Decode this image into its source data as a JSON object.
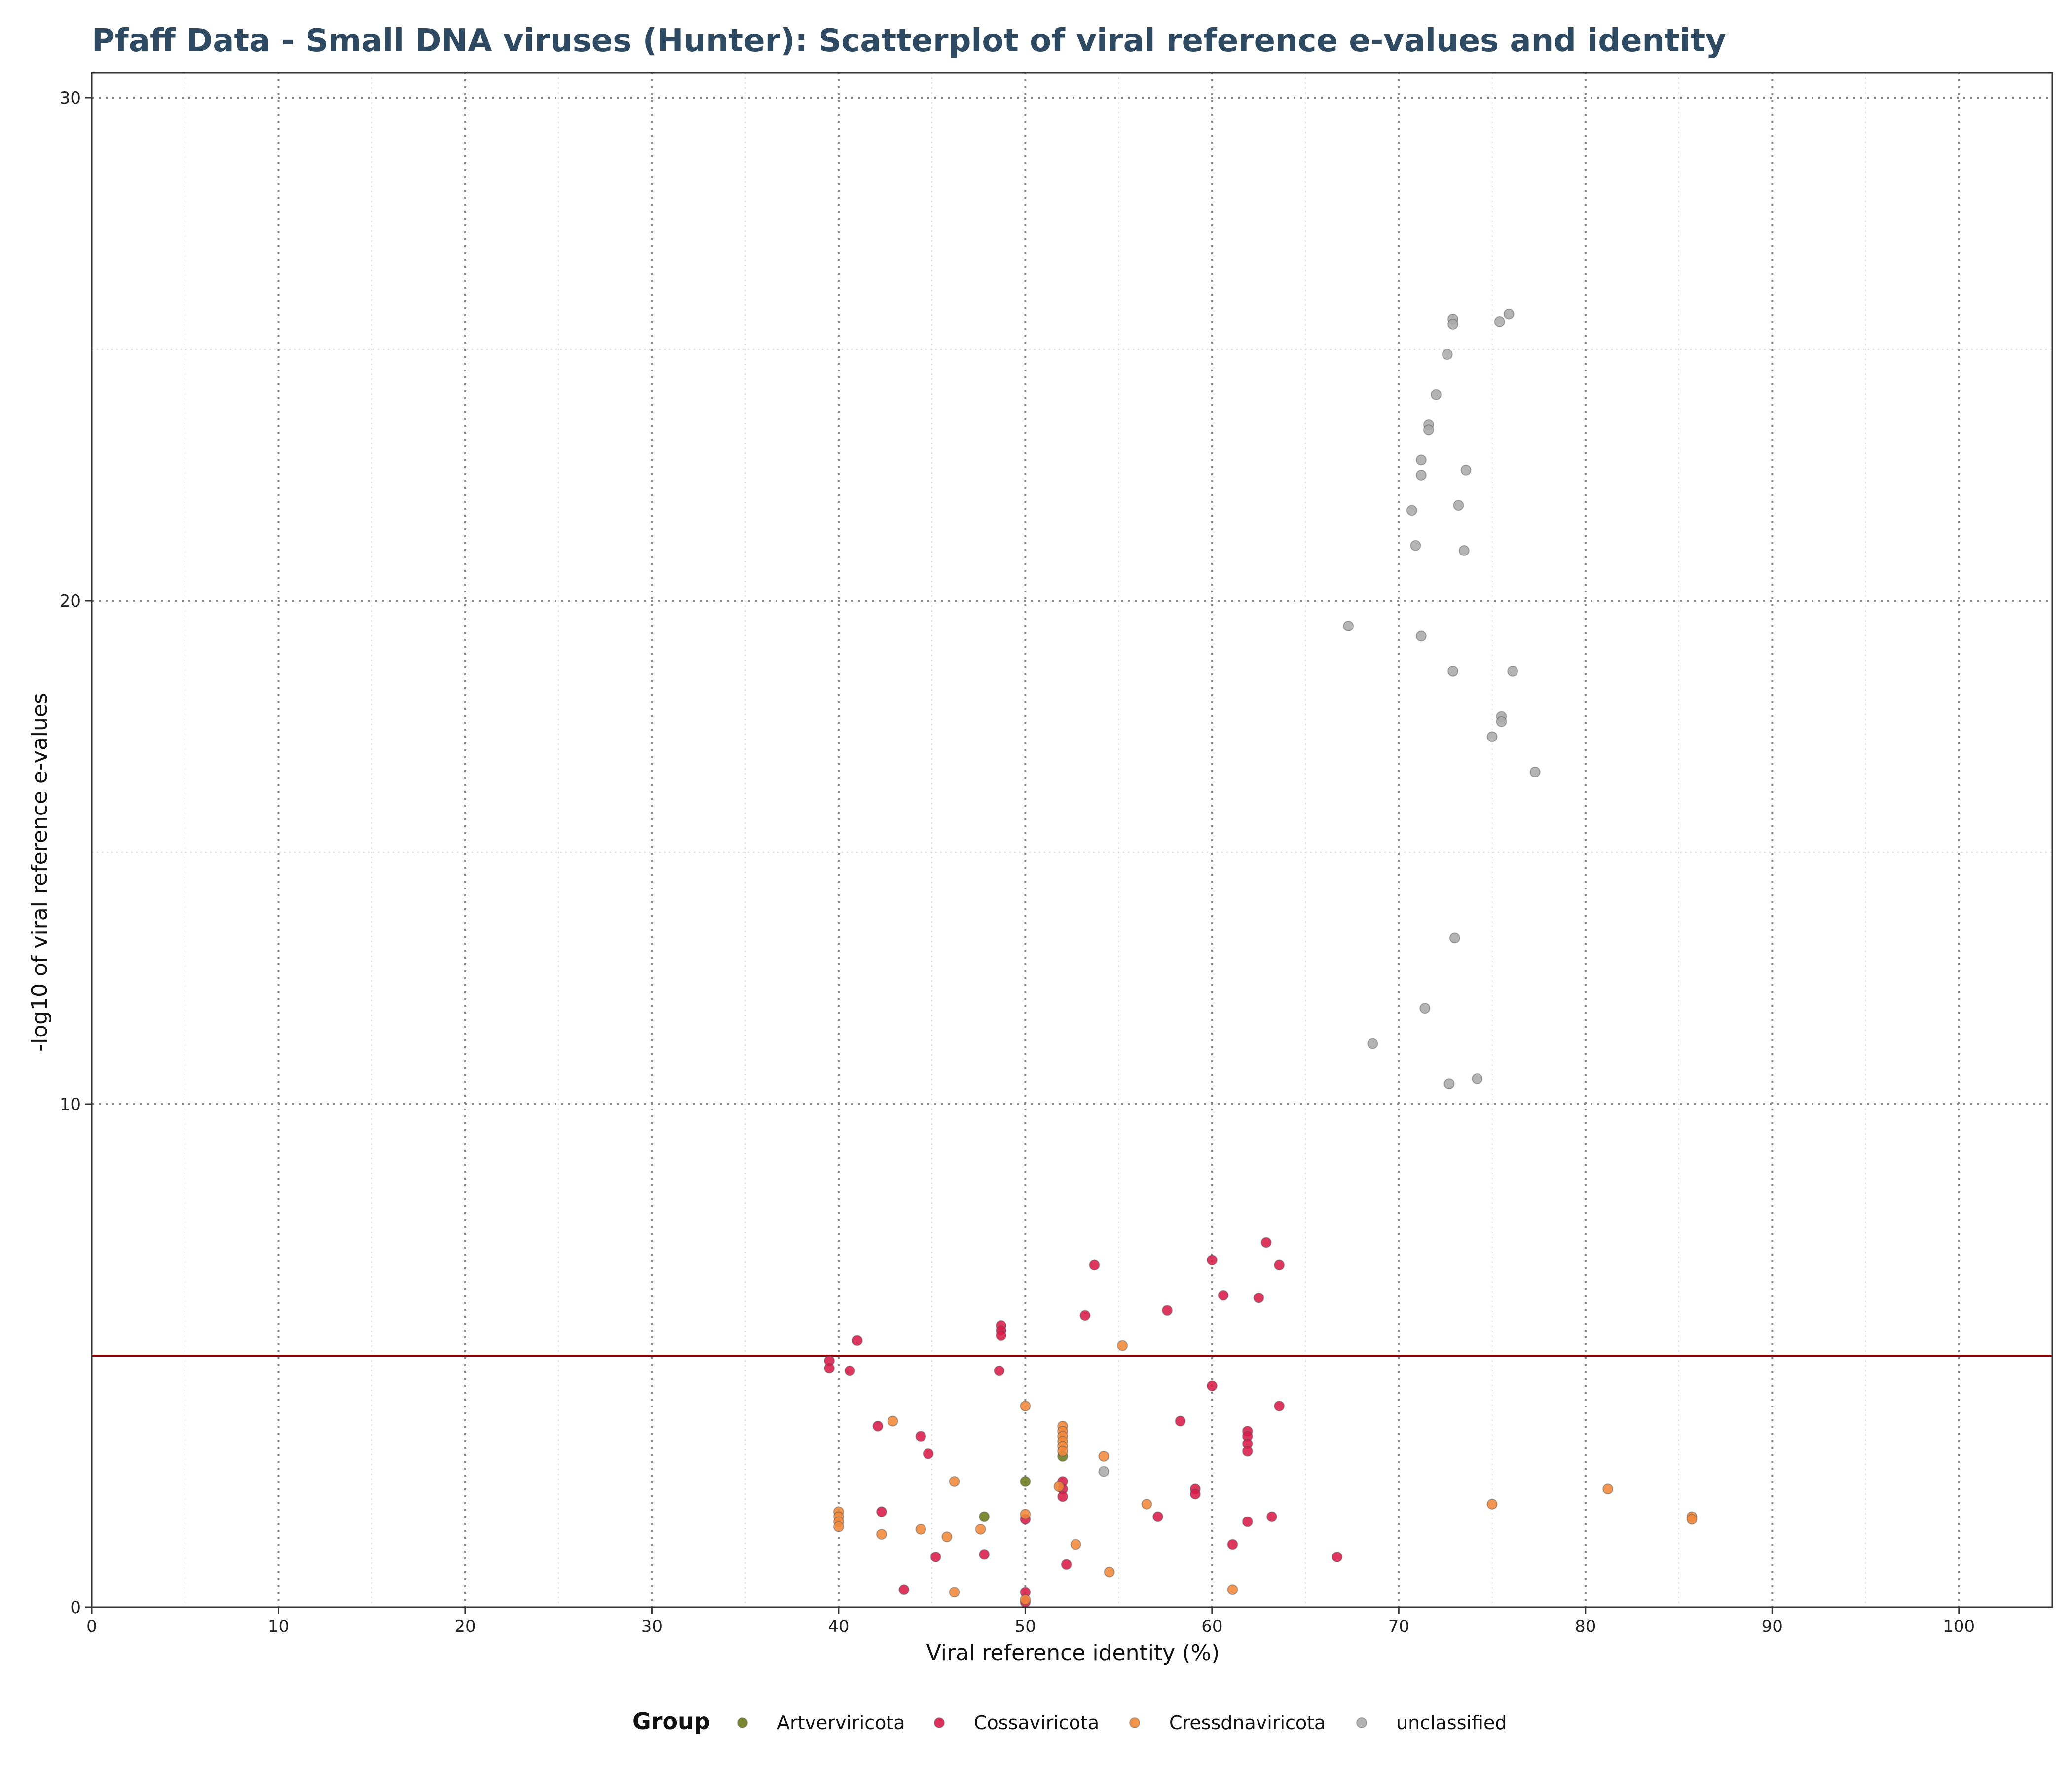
{
  "chart_data": {
    "type": "scatter",
    "title": "Pfaff Data - Small DNA viruses (Hunter): Scatterplot of viral reference e-values and identity",
    "xlabel": "Viral reference identity (%)",
    "ylabel": "-log10 of viral reference e-values",
    "xlim": [
      0,
      105
    ],
    "ylim": [
      0,
      30.5
    ],
    "x_ticks": [
      0,
      10,
      20,
      30,
      40,
      50,
      60,
      70,
      80,
      90,
      100
    ],
    "y_ticks": [
      0,
      10,
      20,
      30
    ],
    "grid": true,
    "threshold_line": {
      "y": 5,
      "color": "#8b0000"
    },
    "legend": {
      "title": "Group",
      "position": "bottom"
    },
    "series": [
      {
        "name": "Artverviricota",
        "color": "#6b7a1a",
        "points": [
          [
            47.8,
            1.8
          ],
          [
            50.0,
            2.5
          ],
          [
            52.0,
            3.0
          ]
        ]
      },
      {
        "name": "Cossaviricota",
        "color": "#d81b4a",
        "points": [
          [
            39.5,
            4.9
          ],
          [
            39.5,
            4.75
          ],
          [
            40.6,
            4.7
          ],
          [
            41.0,
            5.3
          ],
          [
            42.1,
            3.6
          ],
          [
            42.3,
            1.9
          ],
          [
            43.5,
            0.35
          ],
          [
            44.4,
            3.4
          ],
          [
            44.8,
            3.05
          ],
          [
            45.2,
            1.0
          ],
          [
            47.8,
            1.05
          ],
          [
            48.6,
            4.7
          ],
          [
            48.7,
            5.6
          ],
          [
            48.7,
            5.5
          ],
          [
            48.7,
            5.4
          ],
          [
            50.0,
            1.75
          ],
          [
            50.0,
            0.3
          ],
          [
            50.0,
            0.1
          ],
          [
            52.0,
            2.5
          ],
          [
            52.0,
            2.35
          ],
          [
            52.0,
            2.2
          ],
          [
            52.2,
            0.85
          ],
          [
            53.2,
            5.8
          ],
          [
            53.7,
            6.8
          ],
          [
            57.1,
            1.8
          ],
          [
            57.6,
            5.9
          ],
          [
            58.3,
            3.7
          ],
          [
            59.1,
            2.35
          ],
          [
            59.1,
            2.25
          ],
          [
            60.0,
            6.9
          ],
          [
            60.0,
            4.4
          ],
          [
            60.6,
            6.2
          ],
          [
            61.1,
            1.25
          ],
          [
            61.9,
            3.5
          ],
          [
            61.9,
            3.4
          ],
          [
            61.9,
            3.25
          ],
          [
            61.9,
            3.1
          ],
          [
            61.9,
            1.7
          ],
          [
            62.5,
            6.15
          ],
          [
            62.9,
            7.25
          ],
          [
            63.2,
            1.8
          ],
          [
            63.6,
            6.8
          ],
          [
            63.6,
            4.0
          ],
          [
            66.7,
            1.0
          ]
        ]
      },
      {
        "name": "Cressdnaviricota",
        "color": "#f0883a",
        "points": [
          [
            40.0,
            1.9
          ],
          [
            40.0,
            1.8
          ],
          [
            40.0,
            1.7
          ],
          [
            40.0,
            1.6
          ],
          [
            42.3,
            1.45
          ],
          [
            42.9,
            3.7
          ],
          [
            44.4,
            1.55
          ],
          [
            45.8,
            1.4
          ],
          [
            46.2,
            2.5
          ],
          [
            46.2,
            0.3
          ],
          [
            47.6,
            1.55
          ],
          [
            50.0,
            4.0
          ],
          [
            50.0,
            1.85
          ],
          [
            50.0,
            0.15
          ],
          [
            51.8,
            2.4
          ],
          [
            52.0,
            3.6
          ],
          [
            52.0,
            3.5
          ],
          [
            52.0,
            3.4
          ],
          [
            52.0,
            3.3
          ],
          [
            52.0,
            3.2
          ],
          [
            52.0,
            3.1
          ],
          [
            52.7,
            1.25
          ],
          [
            54.2,
            3.0
          ],
          [
            54.5,
            0.7
          ],
          [
            55.2,
            5.2
          ],
          [
            56.5,
            2.05
          ],
          [
            61.1,
            0.35
          ],
          [
            75.0,
            2.05
          ],
          [
            81.2,
            2.35
          ],
          [
            85.7,
            1.8
          ],
          [
            85.7,
            1.75
          ]
        ]
      },
      {
        "name": "unclassified",
        "color": "#aaaaaa",
        "points": [
          [
            54.2,
            2.7
          ],
          [
            67.3,
            19.5
          ],
          [
            68.6,
            11.2
          ],
          [
            70.7,
            21.8
          ],
          [
            70.9,
            21.1
          ],
          [
            71.2,
            22.8
          ],
          [
            71.2,
            22.5
          ],
          [
            71.2,
            19.3
          ],
          [
            71.4,
            11.9
          ],
          [
            71.6,
            23.5
          ],
          [
            71.6,
            23.4
          ],
          [
            72.0,
            24.1
          ],
          [
            72.6,
            24.9
          ],
          [
            72.7,
            10.4
          ],
          [
            72.9,
            25.6
          ],
          [
            72.9,
            25.5
          ],
          [
            72.9,
            18.6
          ],
          [
            73.0,
            13.3
          ],
          [
            73.2,
            21.9
          ],
          [
            73.5,
            21.0
          ],
          [
            73.6,
            22.6
          ],
          [
            74.2,
            10.5
          ],
          [
            75.0,
            17.3
          ],
          [
            75.4,
            25.55
          ],
          [
            75.5,
            17.7
          ],
          [
            75.5,
            17.6
          ],
          [
            75.9,
            25.7
          ],
          [
            76.1,
            18.6
          ],
          [
            77.3,
            16.6
          ]
        ]
      }
    ]
  }
}
